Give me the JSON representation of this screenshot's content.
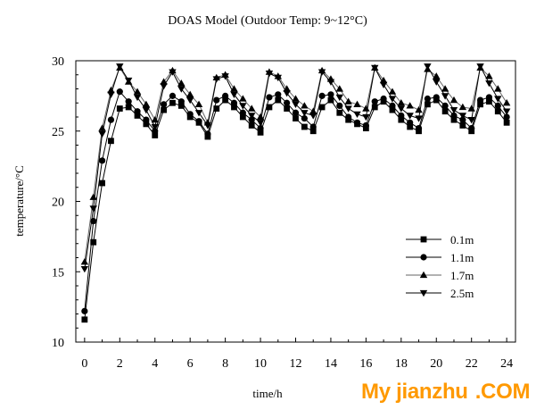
{
  "chart_data": {
    "type": "line",
    "title": "DOAS Model (Outdoor Temp: 9~12°C)",
    "xlabel": "time/h",
    "ylabel": "temperature/°C",
    "xlim": [
      -0.5,
      24.5
    ],
    "ylim": [
      10,
      30
    ],
    "xticks": [
      0,
      2,
      4,
      6,
      8,
      10,
      12,
      14,
      16,
      18,
      20,
      22,
      24
    ],
    "yticks": [
      10,
      15,
      20,
      25,
      30
    ],
    "grid": false,
    "legend_position": "right-middle",
    "x": [
      0,
      0.5,
      1,
      1.5,
      2,
      2.5,
      3,
      3.5,
      4,
      4.5,
      5,
      5.5,
      6,
      6.5,
      7,
      7.5,
      8,
      8.5,
      9,
      9.5,
      10,
      10.5,
      11,
      11.5,
      12,
      12.5,
      13,
      13.5,
      14,
      14.5,
      15,
      15.5,
      16,
      16.5,
      17,
      17.5,
      18,
      18.5,
      19,
      19.5,
      20,
      20.5,
      21,
      21.5,
      22,
      22.5,
      23,
      23.5,
      24
    ],
    "series": [
      {
        "name": "0.1m",
        "marker": "square",
        "values": [
          11.6,
          17.1,
          21.3,
          24.3,
          26.6,
          26.7,
          26.1,
          25.5,
          24.7,
          26.5,
          27.0,
          26.8,
          26.0,
          25.6,
          24.6,
          26.6,
          27.2,
          26.7,
          26.0,
          25.4,
          24.9,
          26.7,
          27.2,
          26.6,
          25.9,
          25.3,
          25.0,
          26.7,
          27.2,
          26.3,
          25.8,
          25.5,
          25.2,
          26.7,
          27.1,
          26.5,
          25.8,
          25.3,
          25.0,
          26.9,
          27.2,
          26.4,
          25.8,
          25.4,
          25.0,
          26.9,
          27.1,
          26.4,
          25.6
        ]
      },
      {
        "name": "1.1m",
        "marker": "circle",
        "values": [
          12.2,
          18.6,
          22.9,
          25.8,
          27.8,
          27.1,
          26.4,
          25.8,
          25.0,
          26.9,
          27.5,
          27.1,
          26.2,
          25.7,
          24.8,
          27.2,
          27.5,
          27.0,
          26.3,
          25.8,
          25.2,
          27.4,
          27.6,
          27.0,
          26.3,
          25.9,
          25.3,
          27.5,
          27.6,
          26.8,
          26.0,
          25.6,
          25.4,
          27.1,
          27.3,
          26.8,
          26.1,
          25.6,
          25.2,
          27.3,
          27.4,
          26.8,
          26.1,
          25.8,
          25.2,
          27.2,
          27.4,
          26.8,
          26.0
        ]
      },
      {
        "name": "1.7m",
        "marker": "triangle-up",
        "values": [
          15.7,
          20.3,
          25.2,
          27.9,
          29.5,
          28.5,
          27.8,
          26.9,
          25.8,
          28.5,
          29.3,
          28.4,
          27.6,
          26.9,
          25.6,
          28.8,
          29.0,
          28.0,
          27.3,
          26.6,
          26.0,
          29.2,
          28.9,
          28.0,
          27.3,
          26.8,
          26.4,
          29.3,
          28.7,
          28.0,
          27.1,
          26.9,
          26.6,
          29.5,
          28.6,
          27.8,
          27.0,
          26.8,
          26.5,
          29.4,
          28.9,
          28.0,
          27.2,
          26.7,
          26.6,
          29.5,
          28.9,
          28.0,
          27.0
        ]
      },
      {
        "name": "2.5m",
        "marker": "triangle-down",
        "values": [
          15.2,
          19.5,
          24.8,
          27.6,
          29.6,
          28.6,
          27.4,
          26.5,
          25.3,
          28.2,
          29.2,
          28.0,
          27.2,
          26.3,
          25.4,
          28.7,
          28.9,
          27.6,
          26.8,
          26.1,
          25.6,
          29.1,
          28.8,
          27.7,
          26.9,
          26.3,
          26.1,
          29.2,
          28.5,
          27.4,
          26.6,
          26.2,
          26.0,
          29.5,
          28.3,
          27.3,
          26.6,
          26.1,
          25.9,
          29.6,
          28.5,
          27.5,
          26.5,
          26.1,
          25.8,
          29.6,
          28.4,
          27.3,
          26.4
        ]
      }
    ]
  },
  "watermark": {
    "text": "My jianzhu",
    "suffix": ".COM"
  }
}
